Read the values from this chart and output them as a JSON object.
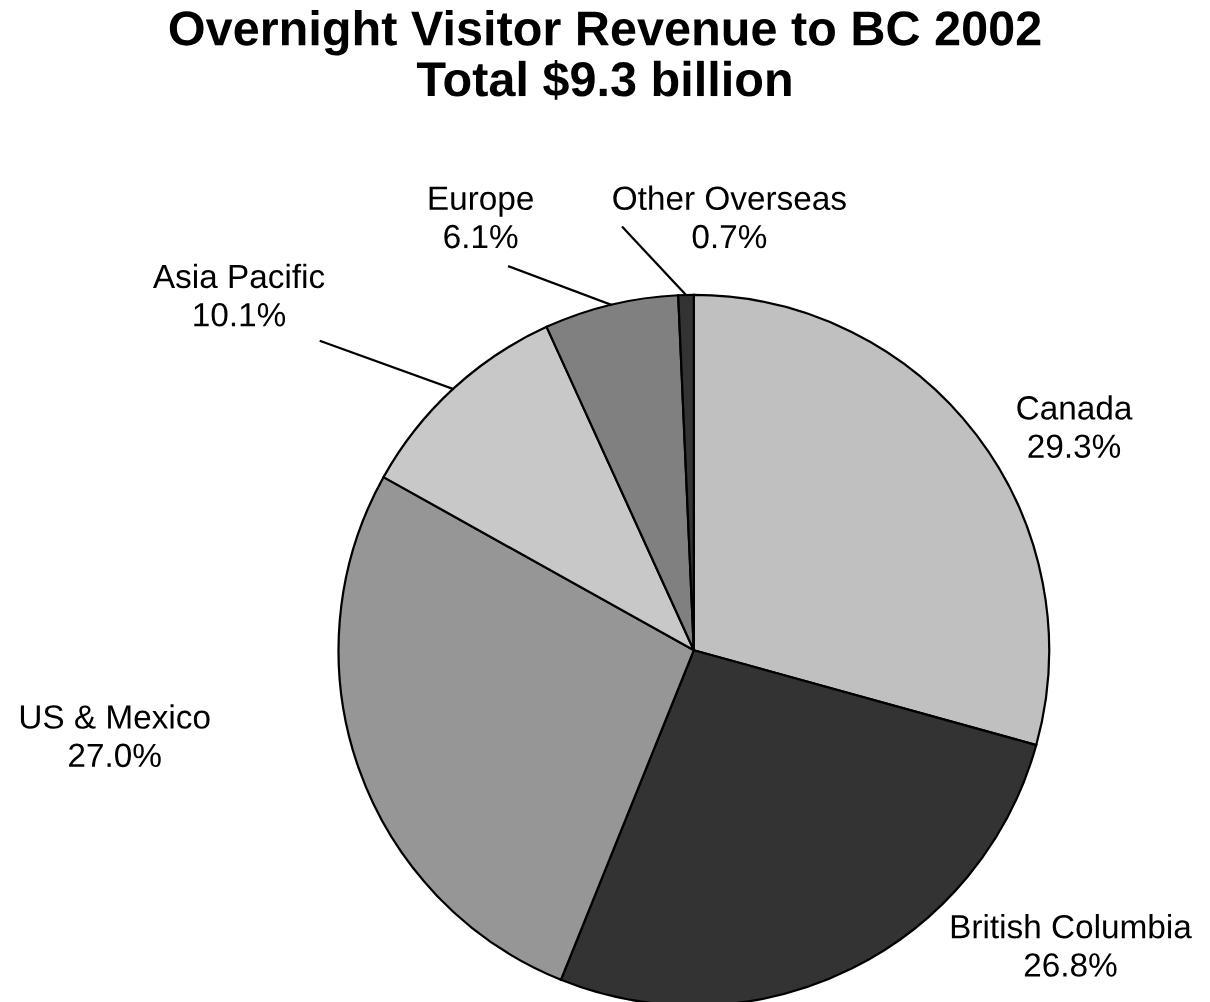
{
  "chart_data": {
    "type": "pie",
    "title": "Overnight Visitor Revenue to BC 2002\nTotal $9.3 billion",
    "categories": [
      "Canada",
      "British Columbia",
      "US & Mexico",
      "Asia Pacific",
      "Europe",
      "Other Overseas"
    ],
    "values": [
      29.3,
      26.8,
      27.0,
      10.1,
      6.1,
      0.7
    ],
    "value_labels": [
      "29.3%",
      "26.8%",
      "27.0%",
      "10.1%",
      "6.1%",
      "0.7%"
    ],
    "colors": [
      "#c0c0c0",
      "#333333",
      "#969696",
      "#c8c8c8",
      "#808080",
      "#333333"
    ],
    "legend": false
  }
}
